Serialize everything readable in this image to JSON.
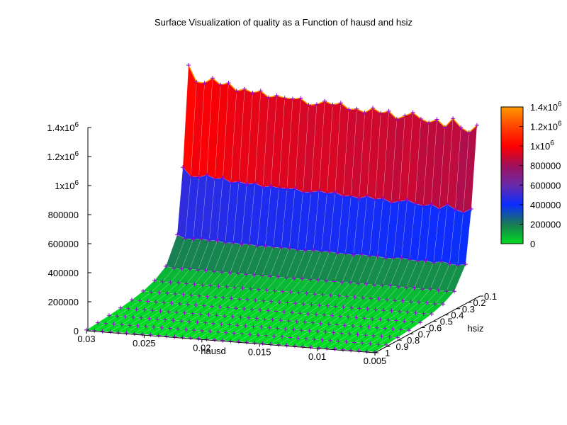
{
  "chart_data": {
    "type": "surface",
    "title": "Surface Visualization of quality as a Function of hausd and hsiz",
    "xlabel": "hausd",
    "ylabel": "hsiz",
    "zlabel": "",
    "x_ticks": [
      "0.03",
      "0.025",
      "0.02",
      "0.015",
      "0.01",
      "0.005"
    ],
    "y_ticks": [
      "0.1",
      "0.2",
      "0.3",
      "0.4",
      "0.5",
      "0.6",
      "0.7",
      "0.8",
      "0.9",
      "1"
    ],
    "z_ticks": [
      {
        "base": "0",
        "exp": ""
      },
      {
        "base": "200000",
        "exp": ""
      },
      {
        "base": "400000",
        "exp": ""
      },
      {
        "base": "600000",
        "exp": ""
      },
      {
        "base": "800000",
        "exp": ""
      },
      {
        "base": "1x10",
        "exp": "6"
      },
      {
        "base": "1.2x10",
        "exp": "6"
      },
      {
        "base": "1.4x10",
        "exp": "6"
      }
    ],
    "colorbar_ticks": [
      {
        "base": "0",
        "exp": ""
      },
      {
        "base": "200000",
        "exp": ""
      },
      {
        "base": "400000",
        "exp": ""
      },
      {
        "base": "600000",
        "exp": ""
      },
      {
        "base": "800000",
        "exp": ""
      },
      {
        "base": "1x10",
        "exp": "6"
      },
      {
        "base": "1.2x10",
        "exp": "6"
      },
      {
        "base": "1.4x10",
        "exp": "6"
      }
    ],
    "x_range": [
      0.005,
      0.03
    ],
    "y_range": [
      0.1,
      1.0
    ],
    "z_range": [
      0,
      1400000
    ],
    "hsiz_values": [
      0.1,
      0.15,
      0.2,
      0.3,
      0.4,
      0.5,
      0.6,
      0.7,
      0.8,
      0.9,
      1.0
    ],
    "quality_at_min_hausd": [
      1400000,
      720000,
      280000,
      110000,
      60000,
      35000,
      22000,
      15000,
      11000,
      8000,
      6000
    ],
    "quality_at_hsiz_0_1_by_hausd": [
      1400000,
      1290000,
      1290000,
      1330000,
      1290000,
      1310000,
      1260000,
      1280000,
      1260000,
      1280000,
      1240000,
      1260000,
      1250000,
      1250000,
      1260000,
      1220000,
      1230000,
      1260000,
      1240000,
      1260000,
      1220000,
      1230000,
      1210000,
      1250000,
      1220000,
      1240000,
      1190000,
      1220000,
      1250000,
      1210000,
      1190000,
      1220000,
      1170000,
      1240000,
      1180000,
      1150000,
      1210000
    ],
    "colorscale": [
      "#00dd22",
      "#1a7a55",
      "#0a2dff",
      "#6a2aaa",
      "#a0105a",
      "#ff0000",
      "#ff4400",
      "#ff9900"
    ],
    "grid": false,
    "legend": "colorbar-right",
    "marker_color": "#9400d3"
  }
}
